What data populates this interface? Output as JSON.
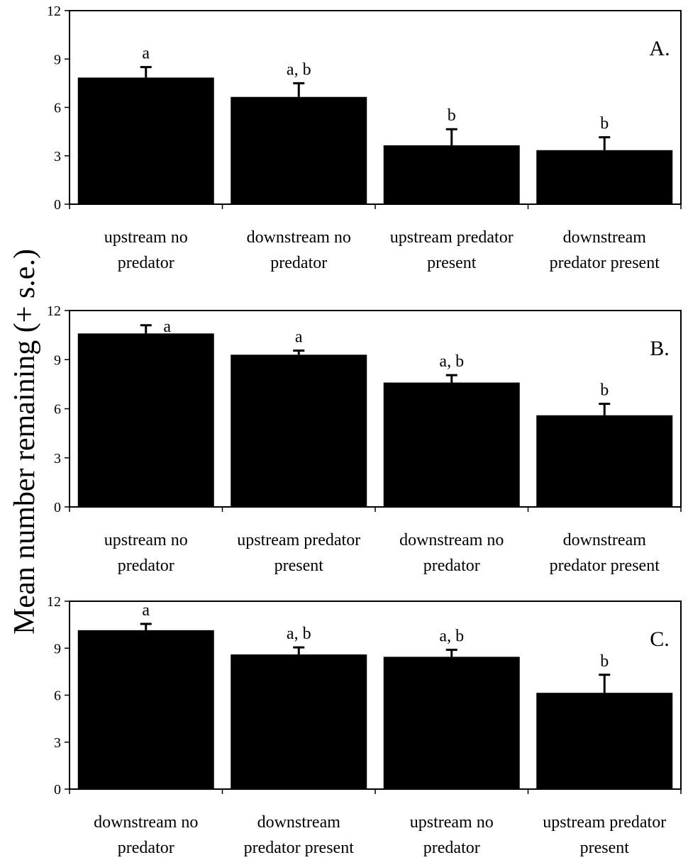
{
  "figure": {
    "ylabel": "Mean number remaining (+ s.e.)"
  },
  "chart_data": [
    {
      "type": "bar",
      "panel_label": "A.",
      "categories": [
        [
          "upstream no",
          "predator"
        ],
        [
          "downstream no",
          "predator"
        ],
        [
          "upstream predator",
          "present"
        ],
        [
          "downstream",
          "predator present"
        ]
      ],
      "values": [
        7.85,
        6.65,
        3.65,
        3.35
      ],
      "errors": [
        0.65,
        0.85,
        1.0,
        0.8
      ],
      "significance": [
        "a",
        "a, b",
        "b",
        "b"
      ],
      "ylim": [
        0,
        12
      ],
      "yticks": [
        "0",
        "3",
        "6",
        "9",
        "12"
      ],
      "bar_color": "#000000"
    },
    {
      "type": "bar",
      "panel_label": "B.",
      "categories": [
        [
          "upstream no",
          "predator"
        ],
        [
          "upstream predator",
          "present"
        ],
        [
          "downstream no",
          "predator"
        ],
        [
          "downstream",
          "predator present"
        ]
      ],
      "values": [
        10.6,
        9.3,
        7.6,
        5.6
      ],
      "errors": [
        0.5,
        0.25,
        0.45,
        0.7
      ],
      "significance": [
        "a",
        "a",
        "a, b",
        "b"
      ],
      "ylim": [
        0,
        12
      ],
      "yticks": [
        "0",
        "3",
        "6",
        "9",
        "12"
      ],
      "bar_color": "#000000"
    },
    {
      "type": "bar",
      "panel_label": "C.",
      "categories": [
        [
          "downstream no",
          "predator"
        ],
        [
          "downstream",
          "predator present"
        ],
        [
          "upstream no",
          "predator"
        ],
        [
          "upstream predator",
          "present"
        ]
      ],
      "values": [
        10.15,
        8.6,
        8.45,
        6.15
      ],
      "errors": [
        0.4,
        0.45,
        0.45,
        1.15
      ],
      "significance": [
        "a",
        "a, b",
        "a, b",
        "b"
      ],
      "ylim": [
        0,
        12
      ],
      "yticks": [
        "0",
        "3",
        "6",
        "9",
        "12"
      ],
      "bar_color": "#000000"
    }
  ]
}
